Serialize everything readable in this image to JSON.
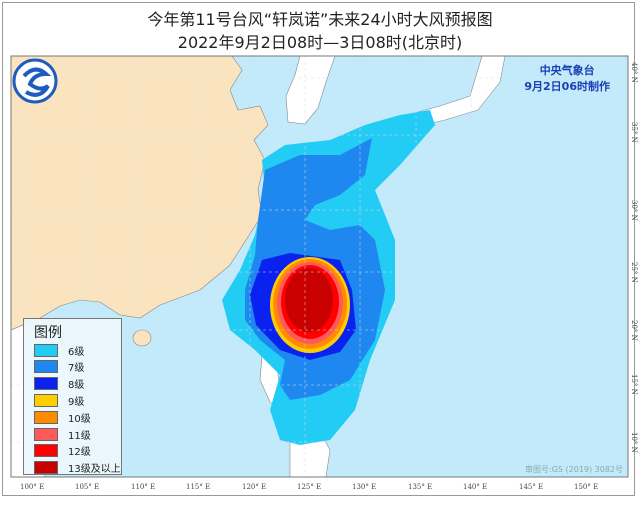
{
  "title": "今年第11号台风“轩岚诺”未来24小时大风预报图",
  "subtitle": "2022年9月2日08时—3日08时(北京时)",
  "agency": {
    "name": "中央气象台",
    "issued": "9月2日06时制作"
  },
  "map_approval": "审图号:GS (2019) 3082号",
  "legend": {
    "title": "图例",
    "items": [
      {
        "label": "6级",
        "color": "#22ccf5"
      },
      {
        "label": "7级",
        "color": "#1e88f0"
      },
      {
        "label": "8级",
        "color": "#0a22f0"
      },
      {
        "label": "9级",
        "color": "#ffcc00"
      },
      {
        "label": "10级",
        "color": "#ff8c00"
      },
      {
        "label": "11级",
        "color": "#ff5a5a"
      },
      {
        "label": "12级",
        "color": "#ff0000"
      },
      {
        "label": "13级及以上",
        "color": "#c80000"
      }
    ]
  },
  "lon_labels": [
    "100° E",
    "105° E",
    "110° E",
    "115° E",
    "120° E",
    "125° E",
    "130° E",
    "135° E",
    "140° E",
    "145° E",
    "150° E"
  ],
  "lat_labels": [
    "40° N",
    "35° N",
    "30° N",
    "25° N",
    "20° N",
    "15° N",
    "10° N"
  ],
  "colors": {
    "sea": "#c2eafa",
    "china_land": "#fae3bf",
    "other_land": "#ffffff",
    "logo": "#1f5cc0"
  }
}
